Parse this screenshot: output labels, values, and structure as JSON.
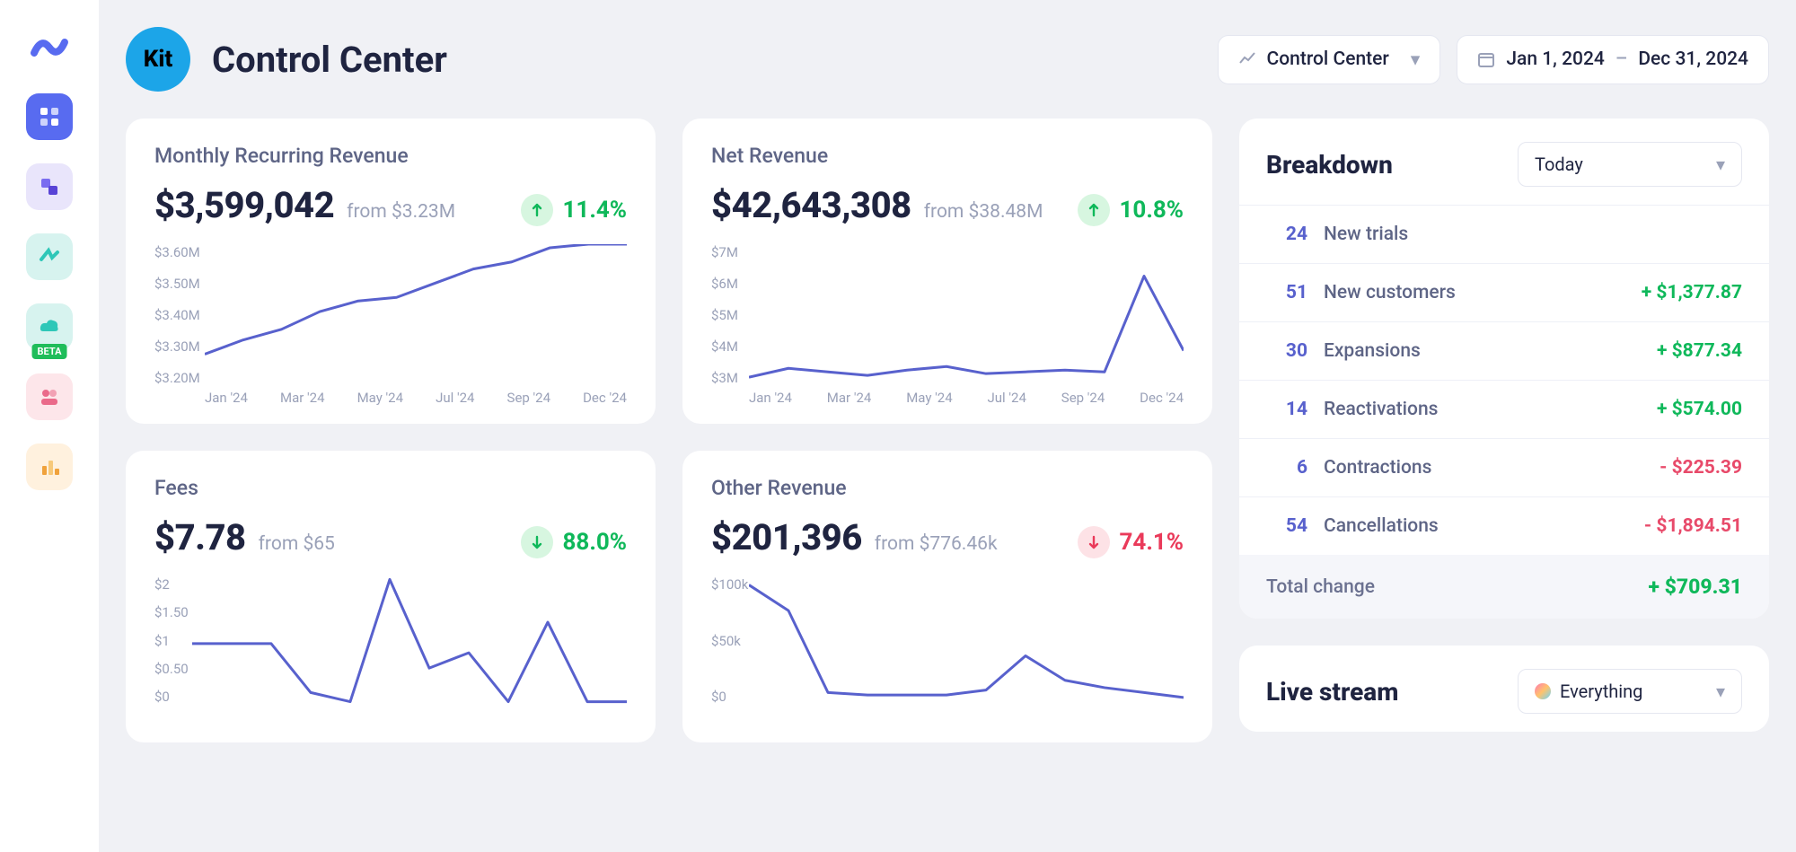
{
  "brand": {
    "logo_text": "Kit"
  },
  "page": {
    "title": "Control Center"
  },
  "top_dropdown": {
    "label": "Control Center"
  },
  "date_range": {
    "from": "Jan 1, 2024",
    "sep": "–",
    "to": "Dec 31, 2024"
  },
  "sidebar_icons": [
    {
      "name": "dashboard",
      "bg": "#586bf0"
    },
    {
      "name": "tiles",
      "bg": "#e9e5fb"
    },
    {
      "name": "spark",
      "bg": "#d7f3ef"
    },
    {
      "name": "cloud-beta",
      "bg": "#d7f3ef",
      "beta": true,
      "beta_text": "BETA"
    },
    {
      "name": "people",
      "bg": "#fde6ea"
    },
    {
      "name": "bars",
      "bg": "#fff1de"
    }
  ],
  "cards": [
    {
      "title": "Monthly Recurring Revenue",
      "value": "$3,599,042",
      "from": "from $3.23M",
      "change_pct": "11.4%",
      "direction": "up",
      "y_ticks": [
        "$3.60M",
        "$3.50M",
        "$3.40M",
        "$3.30M",
        "$3.20M"
      ],
      "y_width": "wide",
      "x_ticks": [
        "Jan '24",
        "Mar '24",
        "May '24",
        "Jul '24",
        "Sep '24",
        "Dec '24"
      ],
      "series": [
        3.29,
        3.33,
        3.36,
        3.41,
        3.44,
        3.45,
        3.49,
        3.53,
        3.55,
        3.59,
        3.6,
        3.6
      ],
      "y_min": 3.2,
      "y_max": 3.6,
      "line_color": "#5861cd"
    },
    {
      "title": "Net Revenue",
      "value": "$42,643,308",
      "from": "from $38.48M",
      "change_pct": "10.8%",
      "direction": "up",
      "y_ticks": [
        "$7M",
        "$6M",
        "$5M",
        "$4M",
        "$3M"
      ],
      "y_width": "narrow",
      "x_ticks": [
        "Jan '24",
        "Mar '24",
        "May '24",
        "Jul '24",
        "Sep '24",
        "Dec '24"
      ],
      "series": [
        3.25,
        3.5,
        3.4,
        3.3,
        3.45,
        3.55,
        3.35,
        3.4,
        3.45,
        3.4,
        6.1,
        4.0
      ],
      "y_min": 3.0,
      "y_max": 7.0,
      "line_color": "#5861cd"
    },
    {
      "title": "Fees",
      "value": "$7.78",
      "from": "from $65",
      "change_pct": "88.0%",
      "direction": "down",
      "down_color": "green",
      "y_ticks": [
        "$2",
        "$1.50",
        "$1",
        "$0.50",
        "$0"
      ],
      "y_width": "narrow",
      "x_ticks": [],
      "series": [
        1.0,
        1.0,
        1.0,
        0.2,
        0.05,
        2.05,
        0.6,
        0.85,
        0.05,
        1.35,
        0.05,
        0.05
      ],
      "y_min": 0,
      "y_max": 2.1,
      "line_color": "#5861cd"
    },
    {
      "title": "Other Revenue",
      "value": "$201,396",
      "from": "from $776.46k",
      "change_pct": "74.1%",
      "direction": "down",
      "down_color": "red",
      "y_ticks": [
        "$100k",
        "$50k",
        "$0"
      ],
      "y_width": "narrow",
      "x_ticks": [],
      "series": [
        98,
        77,
        10,
        8,
        8,
        8,
        12,
        40,
        20,
        14,
        10,
        6
      ],
      "y_min": 0,
      "y_max": 105,
      "line_color": "#5861cd"
    }
  ],
  "breakdown": {
    "title": "Breakdown",
    "range_label": "Today",
    "rows": [
      {
        "count": "24",
        "label": "New trials",
        "amount": ""
      },
      {
        "count": "51",
        "label": "New customers",
        "amount": "+ $1,377.87",
        "color": "green"
      },
      {
        "count": "30",
        "label": "Expansions",
        "amount": "+ $877.34",
        "color": "green"
      },
      {
        "count": "14",
        "label": "Reactivations",
        "amount": "+ $574.00",
        "color": "green"
      },
      {
        "count": "6",
        "label": "Contractions",
        "amount": "- $225.39",
        "color": "red"
      },
      {
        "count": "54",
        "label": "Cancellations",
        "amount": "- $1,894.51",
        "color": "red"
      }
    ],
    "total_label": "Total change",
    "total_amount": "+ $709.31"
  },
  "livestream": {
    "title": "Live stream",
    "filter_label": "Everything"
  },
  "colors": {
    "line": "#5861cd",
    "green": "#0fb85a",
    "red": "#ea3a5a"
  }
}
